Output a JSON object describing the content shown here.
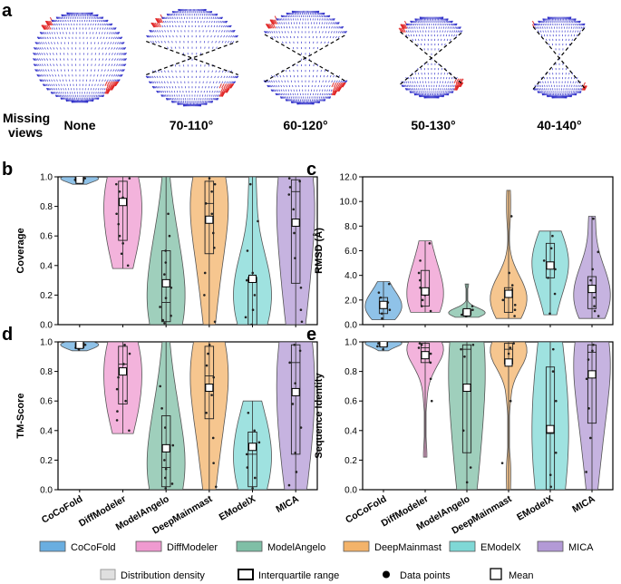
{
  "panel_a": {
    "letter": "a",
    "row_label_1": "Missing",
    "row_label_2": "views",
    "conditions": [
      "None",
      "70-110°",
      "60-120°",
      "50-130°",
      "40-140°"
    ]
  },
  "colors": {
    "CoCoFold": "#6aaee0",
    "DiffModeler": "#ef9ad0",
    "ModelAngelo": "#7fbfa6",
    "DeepMainmast": "#f3b36a",
    "EModelX": "#7fd8d6",
    "MICA": "#b39ad6",
    "sphere_blue": "#2c2cc8",
    "sphere_red": "#e02020"
  },
  "chart_data": [
    {
      "panel": "b",
      "type": "violin",
      "ylabel": "Coverage",
      "ylim": [
        0,
        1.0
      ],
      "yticks": [
        "0.0",
        "0.2",
        "0.4",
        "0.6",
        "0.8",
        "1.0"
      ],
      "categories": [
        "CoCoFold",
        "DiffModeler",
        "ModelAngelo",
        "DeepMainmast",
        "EModelX",
        "MICA"
      ],
      "series": [
        {
          "name": "CoCoFold",
          "min": 0.95,
          "max": 1.0,
          "q1": 0.97,
          "median": 0.99,
          "q3": 1.0,
          "mean": 0.98,
          "points": [
            0.96,
            0.97,
            0.98,
            0.99,
            0.99,
            1.0,
            1.0
          ]
        },
        {
          "name": "DiffModeler",
          "min": 0.38,
          "max": 1.0,
          "q1": 0.57,
          "median": 0.85,
          "q3": 0.97,
          "mean": 0.83,
          "points": [
            0.4,
            0.48,
            0.55,
            0.6,
            0.68,
            0.75,
            0.86,
            0.9,
            0.95,
            0.99
          ]
        },
        {
          "name": "ModelAngelo",
          "min": 0.0,
          "max": 1.0,
          "q1": 0.02,
          "median": 0.15,
          "q3": 0.5,
          "mean": 0.28,
          "points": [
            0.01,
            0.03,
            0.06,
            0.12,
            0.18,
            0.25,
            0.34,
            0.42,
            0.5,
            0.6,
            0.75
          ]
        },
        {
          "name": "DeepMainmast",
          "min": 0.0,
          "max": 1.0,
          "q1": 0.48,
          "median": 0.82,
          "q3": 0.97,
          "mean": 0.71,
          "points": [
            0.02,
            0.2,
            0.35,
            0.52,
            0.62,
            0.75,
            0.82,
            0.9,
            0.95,
            0.99
          ]
        },
        {
          "name": "EModelX",
          "min": 0.0,
          "max": 1.0,
          "q1": 0.0,
          "median": 0.3,
          "q3": 0.32,
          "mean": 0.31,
          "points": [
            0.0,
            0.05,
            0.1,
            0.2,
            0.3,
            0.35,
            0.5,
            0.7,
            0.95
          ]
        },
        {
          "name": "MICA",
          "min": 0.0,
          "max": 1.0,
          "q1": 0.28,
          "median": 0.9,
          "q3": 0.98,
          "mean": 0.69,
          "points": [
            0.02,
            0.1,
            0.25,
            0.45,
            0.62,
            0.78,
            0.88,
            0.93,
            0.97,
            0.99
          ]
        }
      ]
    },
    {
      "panel": "c",
      "type": "violin",
      "ylabel": "RMSD (Å)",
      "ylim": [
        0,
        12.0
      ],
      "yticks": [
        "0.0",
        "2.0",
        "4.0",
        "6.0",
        "8.0",
        "10.0",
        "12.0"
      ],
      "categories": [
        "CoCoFold",
        "DiffModeler",
        "ModelAngelo",
        "DeepMainmast",
        "EModelX",
        "MICA"
      ],
      "series": [
        {
          "name": "CoCoFold",
          "min": 0.4,
          "max": 3.5,
          "q1": 0.9,
          "median": 1.6,
          "q3": 2.2,
          "mean": 1.6,
          "points": [
            0.5,
            0.9,
            1.2,
            1.5,
            1.8,
            2.2,
            2.6,
            3.3
          ]
        },
        {
          "name": "DiffModeler",
          "min": 1.0,
          "max": 6.8,
          "q1": 1.5,
          "median": 2.4,
          "q3": 4.4,
          "mean": 2.7,
          "points": [
            1.1,
            1.5,
            2.0,
            2.4,
            3.0,
            3.6,
            4.2,
            5.2,
            6.6
          ]
        },
        {
          "name": "ModelAngelo",
          "min": 0.6,
          "max": 3.3,
          "q1": 0.8,
          "median": 1.0,
          "q3": 1.2,
          "mean": 1.0,
          "points": [
            0.7,
            0.8,
            0.9,
            1.0,
            1.1,
            1.2,
            1.5
          ]
        },
        {
          "name": "DeepMainmast",
          "min": 0.5,
          "max": 10.9,
          "q1": 1.0,
          "median": 2.5,
          "q3": 3.0,
          "mean": 2.5,
          "points": [
            0.7,
            1.2,
            1.6,
            2.0,
            2.4,
            2.8,
            3.2,
            4.2,
            8.8
          ]
        },
        {
          "name": "EModelX",
          "min": 0.8,
          "max": 7.6,
          "q1": 3.8,
          "median": 4.7,
          "q3": 6.6,
          "mean": 4.8,
          "points": [
            0.9,
            2.5,
            3.8,
            4.5,
            5.2,
            6.2,
            7.2
          ]
        },
        {
          "name": "MICA",
          "min": 0.5,
          "max": 8.8,
          "q1": 1.3,
          "median": 2.9,
          "q3": 3.9,
          "mean": 2.9,
          "points": [
            0.7,
            1.1,
            1.5,
            2.2,
            2.9,
            3.6,
            4.5,
            5.9,
            8.6
          ]
        }
      ]
    },
    {
      "panel": "d",
      "type": "violin",
      "ylabel": "TM-Score",
      "ylim": [
        0,
        1.0
      ],
      "yticks": [
        "0.0",
        "0.2",
        "0.4",
        "0.6",
        "0.8",
        "1.0"
      ],
      "categories": [
        "CoCoFold",
        "DiffModeler",
        "ModelAngelo",
        "DeepMainmast",
        "EModelX",
        "MICA"
      ],
      "series": [
        {
          "name": "CoCoFold",
          "min": 0.94,
          "max": 1.0,
          "q1": 0.96,
          "median": 0.98,
          "q3": 0.99,
          "mean": 0.98,
          "points": [
            0.95,
            0.96,
            0.97,
            0.98,
            0.99,
            0.99,
            1.0
          ]
        },
        {
          "name": "DiffModeler",
          "min": 0.38,
          "max": 1.0,
          "q1": 0.58,
          "median": 0.85,
          "q3": 0.97,
          "mean": 0.8,
          "points": [
            0.4,
            0.47,
            0.53,
            0.6,
            0.68,
            0.76,
            0.85,
            0.92,
            0.98
          ]
        },
        {
          "name": "ModelAngelo",
          "min": 0.0,
          "max": 1.0,
          "q1": 0.02,
          "median": 0.15,
          "q3": 0.5,
          "mean": 0.28,
          "points": [
            0.01,
            0.04,
            0.08,
            0.14,
            0.2,
            0.3,
            0.42,
            0.55,
            0.7
          ]
        },
        {
          "name": "DeepMainmast",
          "min": 0.0,
          "max": 1.0,
          "q1": 0.48,
          "median": 0.77,
          "q3": 0.97,
          "mean": 0.69,
          "points": [
            0.02,
            0.18,
            0.35,
            0.52,
            0.64,
            0.76,
            0.84,
            0.92,
            0.98
          ]
        },
        {
          "name": "EModelX",
          "min": 0.0,
          "max": 0.6,
          "q1": 0.02,
          "median": 0.24,
          "q3": 0.39,
          "mean": 0.29,
          "points": [
            0.01,
            0.08,
            0.15,
            0.24,
            0.32,
            0.4,
            0.52
          ]
        },
        {
          "name": "MICA",
          "min": 0.0,
          "max": 1.0,
          "q1": 0.24,
          "median": 0.86,
          "q3": 0.98,
          "mean": 0.66,
          "points": [
            0.03,
            0.12,
            0.25,
            0.42,
            0.58,
            0.72,
            0.86,
            0.94,
            0.98
          ]
        }
      ]
    },
    {
      "panel": "e",
      "type": "violin",
      "ylabel": "Sequence Identity",
      "ylim": [
        0,
        1.0
      ],
      "yticks": [
        "0.0",
        "0.2",
        "0.4",
        "0.6",
        "0.8",
        "1.0"
      ],
      "categories": [
        "CoCoFold",
        "DiffModeler",
        "ModelAngelo",
        "DeepMainmast",
        "EModelX",
        "MICA"
      ],
      "series": [
        {
          "name": "CoCoFold",
          "min": 0.94,
          "max": 1.0,
          "q1": 0.97,
          "median": 0.99,
          "q3": 1.0,
          "mean": 0.99,
          "points": [
            0.95,
            0.97,
            0.98,
            0.99,
            1.0,
            1.0
          ]
        },
        {
          "name": "DiffModeler",
          "min": 0.22,
          "max": 1.0,
          "q1": 0.86,
          "median": 0.96,
          "q3": 0.99,
          "mean": 0.91,
          "points": [
            0.6,
            0.75,
            0.86,
            0.92,
            0.96,
            0.98,
            0.99
          ]
        },
        {
          "name": "ModelAngelo",
          "min": 0.0,
          "max": 1.0,
          "q1": 0.25,
          "median": 0.95,
          "q3": 0.98,
          "mean": 0.69,
          "points": [
            0.05,
            0.15,
            0.4,
            0.7,
            0.9,
            0.95,
            0.98
          ]
        },
        {
          "name": "DeepMainmast",
          "min": 0.0,
          "max": 1.0,
          "q1": 0.85,
          "median": 0.95,
          "q3": 0.99,
          "mean": 0.86,
          "points": [
            0.18,
            0.6,
            0.85,
            0.92,
            0.96,
            0.99
          ]
        },
        {
          "name": "EModelX",
          "min": 0.0,
          "max": 1.0,
          "q1": 0.0,
          "median": 0.38,
          "q3": 0.83,
          "mean": 0.41,
          "points": [
            0.02,
            0.1,
            0.25,
            0.4,
            0.6,
            0.8,
            0.95
          ]
        },
        {
          "name": "MICA",
          "min": 0.0,
          "max": 1.0,
          "q1": 0.45,
          "median": 0.93,
          "q3": 0.98,
          "mean": 0.78,
          "points": [
            0.12,
            0.35,
            0.55,
            0.75,
            0.88,
            0.94,
            0.98
          ]
        }
      ]
    }
  ],
  "legend": {
    "methods": [
      "CoCoFold",
      "DiffModeler",
      "ModelAngelo",
      "DeepMainmast",
      "EModelX",
      "MICA"
    ],
    "distribution": "Distribution density",
    "iqr": "Interquartile range",
    "points": "Data points",
    "mean": "Mean"
  }
}
